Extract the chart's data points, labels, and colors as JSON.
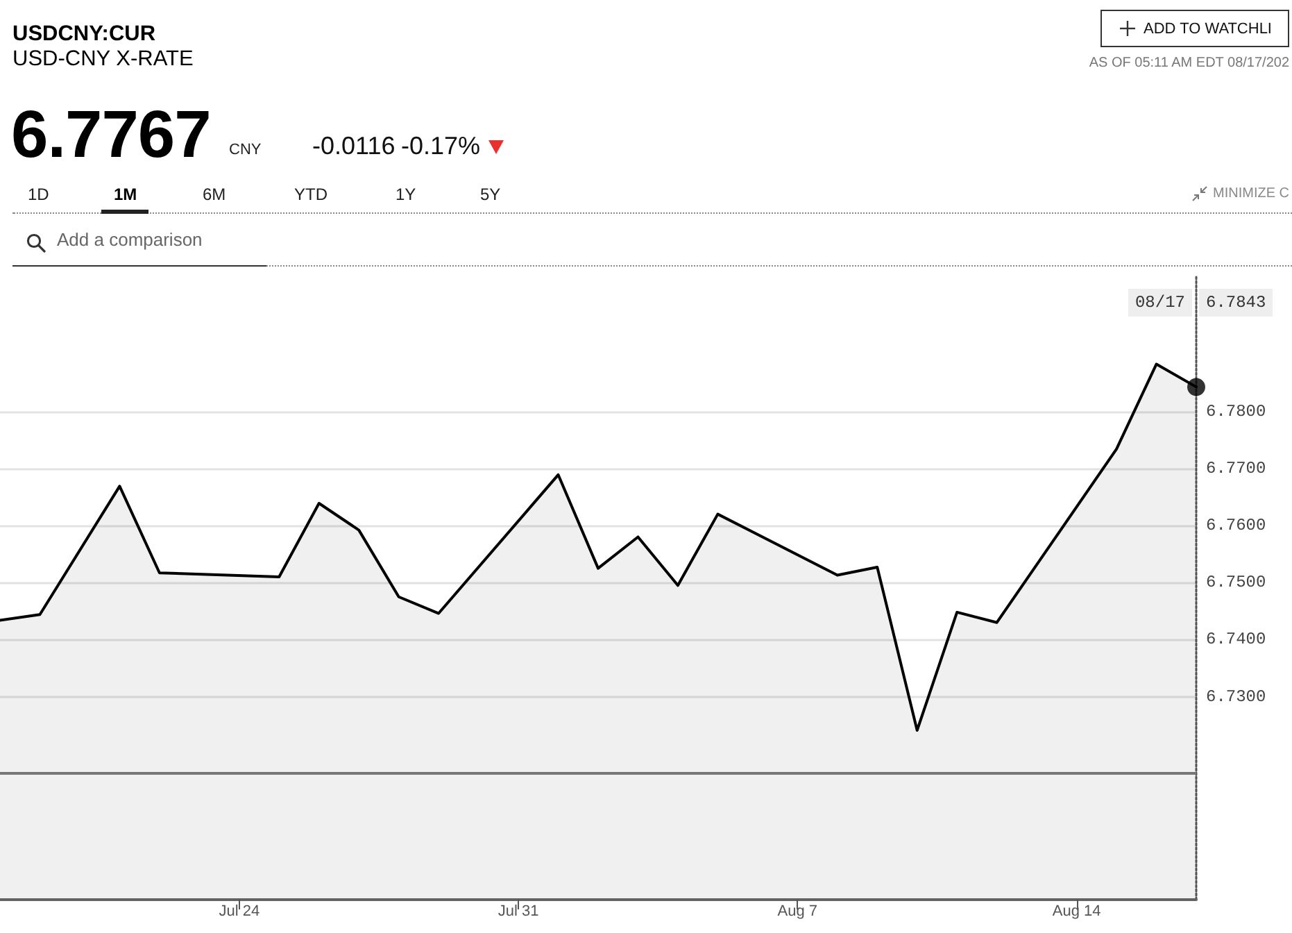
{
  "chart_data": {
    "type": "area",
    "title": "USDCNY:CUR",
    "subtitle": "USD-CNY X-RATE",
    "annotations": [
      "6.7767",
      "CNY",
      "-0.0116",
      "-0.17%",
      "ADD TO WATCHLI",
      "AS OF 05:11 AM EDT 08/17/202",
      "1D",
      "1M",
      "6M",
      "YTD",
      "1Y",
      "5Y",
      "MINIMIZE C",
      "Add a comparison",
      "08/17",
      "6.7843"
    ],
    "series": [
      {
        "color": "#000000",
        "x": [
          "--07-18",
          "--07-19",
          "--07-21",
          "--07-22",
          "--07-25",
          "--07-26",
          "--07-27",
          "--07-28",
          "--07-29",
          "--08-01",
          "--08-02",
          "--08-03",
          "--08-04",
          "--08-05",
          "--08-08",
          "--08-09",
          "--08-10",
          "--08-11",
          "--08-12",
          "--08-15",
          "--08-16",
          "--08-17"
        ],
        "values": [
          6.7434,
          6.7444,
          6.7669,
          6.7517,
          6.751,
          6.7639,
          6.7592,
          6.7475,
          6.7446,
          6.7689,
          6.7525,
          6.758,
          6.7495,
          6.762,
          6.7513,
          6.7527,
          6.7241,
          6.7448,
          6.743,
          6.7734,
          6.7883,
          6.7843
        ]
      },
      {
        "type": "scatter",
        "color": "#000000",
        "marker": "circle",
        "x": [
          "--08-17"
        ],
        "values": [
          6.7843
        ]
      }
    ],
    "xlim": [
      "--07-18",
      "--08-17"
    ],
    "xticks": [
      {
        "value": "--07-24",
        "label": "Jul 24"
      },
      {
        "value": "--07-31",
        "label": "Jul 31"
      },
      {
        "value": "--08-07",
        "label": "Aug 7"
      },
      {
        "value": "--08-14",
        "label": "Aug 14"
      }
    ],
    "ylim": [
      6.6944,
      6.8037
    ],
    "yticks": [
      {
        "value": 6.73,
        "label": "6.7300"
      },
      {
        "value": 6.74,
        "label": "6.7400"
      },
      {
        "value": 6.75,
        "label": "6.7500"
      },
      {
        "value": 6.76,
        "label": "6.7600"
      },
      {
        "value": 6.77,
        "label": "6.7700"
      },
      {
        "value": 6.78,
        "label": "6.7800"
      }
    ],
    "ref_lines": [
      {
        "axis": "y",
        "value": 6.7165,
        "color": "#777777"
      }
    ],
    "grid": "y",
    "marker": "none"
  }
}
